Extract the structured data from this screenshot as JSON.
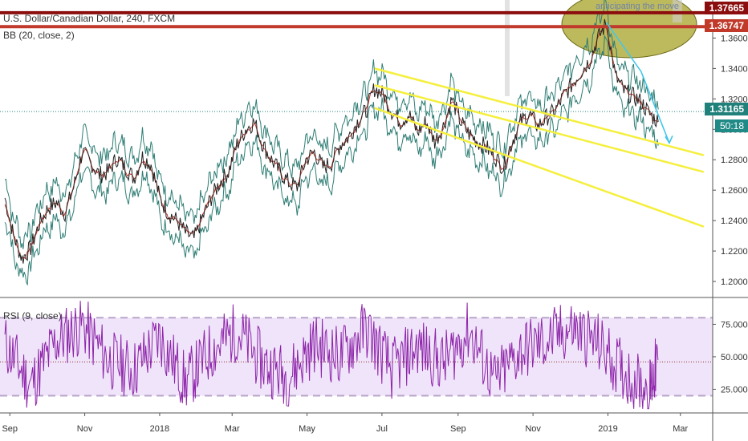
{
  "header": {
    "symbol_title": "U.S. Dollar/Canadian Dollar, 240, FXCM",
    "bb_indicator": "BB (20, close, 2)",
    "rsi_indicator": "RSI (9, close)"
  },
  "annotation_note": "anticipating the move",
  "price_badges": {
    "upper_resistance": "1.37665",
    "lower_resistance": "1.36747",
    "current_price": "1.31165",
    "countdown": "50:18"
  },
  "colors": {
    "resistance_line": "#8b0d0d",
    "resistance_line_lower": "#c0392b",
    "current_price_badge": "#20807a",
    "countdown_badge": "#1f8a86",
    "price_line": "#222222",
    "bb_band": "#2e7d74",
    "bb_basis": "#c0392b",
    "channel": "#f5ef3c",
    "path_arrow": "#43c6e7",
    "ellipse_fill": "#a7a328",
    "rsi_line": "#8e24aa",
    "rsi_band_fill": "#e8d9f7",
    "rsi_band_border": "#b9a4c9"
  },
  "chart_data": [
    {
      "type": "line",
      "panel": "price",
      "title": "U.S. Dollar/Canadian Dollar, 240, FXCM",
      "x_tick_labels": [
        "Sep",
        "Nov",
        "2018",
        "Mar",
        "May",
        "Jul",
        "Sep",
        "Nov",
        "2019",
        "Mar"
      ],
      "y_tick_labels": [
        "1.20000",
        "1.22000",
        "1.24000",
        "1.26000",
        "1.28000",
        "1.30000",
        "1.32000",
        "1.34000",
        "1.36000"
      ],
      "ylim": [
        1.19,
        1.385
      ],
      "grid": false,
      "series": [
        {
          "name": "USD/CAD close",
          "x": [
            "2017-08-28",
            "2017-09-04",
            "2017-09-11",
            "2017-09-18",
            "2017-09-25",
            "2017-10-02",
            "2017-10-09",
            "2017-10-16",
            "2017-10-23",
            "2017-10-30",
            "2017-11-06",
            "2017-11-13",
            "2017-11-20",
            "2017-11-27",
            "2017-12-04",
            "2017-12-11",
            "2017-12-18",
            "2017-12-25",
            "2018-01-01",
            "2018-01-08",
            "2018-01-15",
            "2018-01-22",
            "2018-01-29",
            "2018-02-05",
            "2018-02-12",
            "2018-02-19",
            "2018-02-26",
            "2018-03-05",
            "2018-03-12",
            "2018-03-19",
            "2018-03-26",
            "2018-04-02",
            "2018-04-09",
            "2018-04-16",
            "2018-04-23",
            "2018-04-30",
            "2018-05-07",
            "2018-05-14",
            "2018-05-21",
            "2018-05-28",
            "2018-06-04",
            "2018-06-11",
            "2018-06-18",
            "2018-06-25",
            "2018-07-02",
            "2018-07-09",
            "2018-07-16",
            "2018-07-23",
            "2018-07-30",
            "2018-08-06",
            "2018-08-13",
            "2018-08-20",
            "2018-08-27",
            "2018-09-03",
            "2018-09-10",
            "2018-09-17",
            "2018-09-24",
            "2018-10-01",
            "2018-10-08",
            "2018-10-15",
            "2018-10-22",
            "2018-10-29",
            "2018-11-05",
            "2018-11-12",
            "2018-11-19",
            "2018-11-26",
            "2018-12-03",
            "2018-12-10",
            "2018-12-17",
            "2018-12-24",
            "2018-12-31",
            "2019-01-07",
            "2019-01-14",
            "2019-01-21",
            "2019-01-28",
            "2019-02-04",
            "2019-02-11"
          ],
          "values": [
            1.255,
            1.23,
            1.215,
            1.222,
            1.238,
            1.248,
            1.252,
            1.245,
            1.262,
            1.285,
            1.278,
            1.27,
            1.272,
            1.281,
            1.275,
            1.268,
            1.282,
            1.277,
            1.255,
            1.245,
            1.24,
            1.232,
            1.228,
            1.242,
            1.255,
            1.265,
            1.272,
            1.29,
            1.3,
            1.305,
            1.29,
            1.28,
            1.272,
            1.265,
            1.262,
            1.28,
            1.285,
            1.275,
            1.278,
            1.29,
            1.295,
            1.305,
            1.312,
            1.327,
            1.323,
            1.312,
            1.305,
            1.31,
            1.298,
            1.305,
            1.292,
            1.302,
            1.32,
            1.305,
            1.297,
            1.292,
            1.288,
            1.282,
            1.275,
            1.292,
            1.305,
            1.31,
            1.302,
            1.308,
            1.312,
            1.322,
            1.33,
            1.338,
            1.345,
            1.36,
            1.37,
            1.335,
            1.325,
            1.322,
            1.318,
            1.31,
            1.305
          ]
        },
        {
          "name": "BB upper",
          "offset_above_close": 0.012
        },
        {
          "name": "BB lower",
          "offset_below_close": 0.012
        }
      ],
      "annotations": {
        "horizontal_lines": [
          1.37665,
          1.36747,
          1.31165
        ],
        "channel_upper": {
          "x": [
            "2018-06-25",
            "2019-03-20"
          ],
          "y": [
            1.34,
            1.283
          ]
        },
        "channel_middle": {
          "x": [
            "2018-06-25",
            "2019-03-20"
          ],
          "y": [
            1.329,
            1.272
          ]
        },
        "channel_lower": {
          "x": [
            "2018-06-25",
            "2019-03-20"
          ],
          "y": [
            1.314,
            1.236
          ]
        },
        "projected_path": {
          "x": [
            "2018-12-31",
            "2019-01-28",
            "2019-02-20"
          ],
          "y": [
            1.37,
            1.338,
            1.291
          ]
        }
      }
    },
    {
      "type": "line",
      "panel": "rsi",
      "title": "RSI (9, close)",
      "y_tick_labels": [
        "25.0000",
        "50.0000",
        "75.0000"
      ],
      "ylim": [
        8,
        95
      ],
      "band": [
        20,
        80
      ],
      "midline": 46,
      "series": [
        {
          "name": "RSI",
          "x": [
            "2017-08-28",
            "2017-09-18",
            "2017-10-09",
            "2017-10-30",
            "2017-11-20",
            "2017-12-11",
            "2018-01-01",
            "2018-01-22",
            "2018-02-12",
            "2018-03-05",
            "2018-03-26",
            "2018-04-16",
            "2018-05-07",
            "2018-05-28",
            "2018-06-18",
            "2018-07-09",
            "2018-07-30",
            "2018-08-20",
            "2018-09-10",
            "2018-10-01",
            "2018-10-22",
            "2018-11-12",
            "2018-12-03",
            "2018-12-24",
            "2019-01-14",
            "2019-02-04",
            "2019-02-11"
          ],
          "values": [
            60,
            28,
            62,
            75,
            48,
            40,
            65,
            30,
            55,
            70,
            45,
            35,
            60,
            50,
            72,
            40,
            58,
            45,
            70,
            30,
            55,
            62,
            72,
            60,
            38,
            25,
            48
          ]
        }
      ]
    }
  ]
}
